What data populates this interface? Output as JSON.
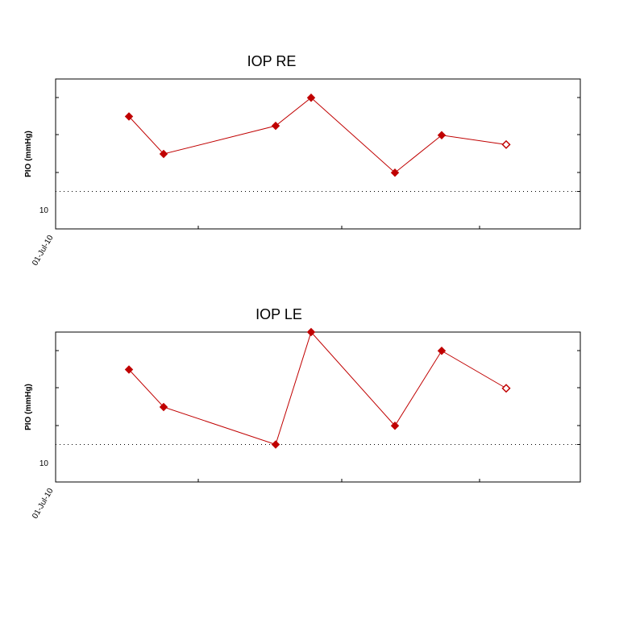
{
  "colors": {
    "series": "#c00000",
    "axis": "#000000",
    "refline": "#000000"
  },
  "chart_data": [
    {
      "type": "line",
      "title": "IOP RE",
      "ylabel": "PIO (mmHg)",
      "xlabel": "",
      "x_tick_label": "01-Jul-10",
      "y_tick_label": "10",
      "reference_line": 10,
      "ylim": [
        8,
        16
      ],
      "grid": false,
      "series": [
        {
          "values": [
            14,
            12,
            13.5,
            15,
            11,
            13,
            12.5
          ],
          "last_point_open": true
        }
      ]
    },
    {
      "type": "line",
      "title": "IOP LE",
      "ylabel": "PIO (mmHg)",
      "xlabel": "",
      "x_tick_label": "01-Jul-10",
      "y_tick_label": "10",
      "reference_line": 10,
      "ylim": [
        8,
        16
      ],
      "grid": false,
      "series": [
        {
          "values": [
            14,
            12,
            10,
            16,
            11,
            15,
            13
          ],
          "last_point_open": true
        }
      ]
    }
  ]
}
